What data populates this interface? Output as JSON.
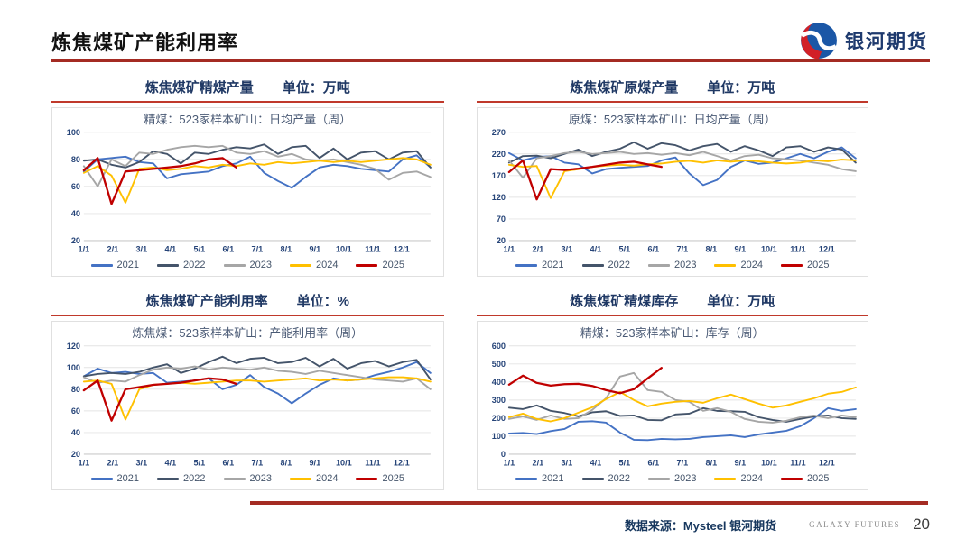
{
  "header": {
    "title": "炼焦煤矿产能利用率",
    "logo_text": "银河期货"
  },
  "footer": {
    "source_label": "数据来源：Mysteel 银河期货",
    "brand": "GALAXY FUTURES",
    "page_number": "20"
  },
  "colors": {
    "accent_red": "#A42B23",
    "panel_rule_red": "#C0392B",
    "title_navy": "#1F3864"
  },
  "chart_data": [
    {
      "type": "line",
      "panel_title": "炼焦煤矿精煤产量",
      "unit_label": "单位：万吨",
      "subtitle": "精煤：523家样本矿山：日均产量（周）",
      "ylim": [
        20,
        100
      ],
      "yticks": [
        100,
        80,
        60,
        40,
        20
      ],
      "xticklabels": [
        "1/1",
        "2/1",
        "3/1",
        "4/1",
        "5/1",
        "6/1",
        "7/1",
        "8/1",
        "9/1",
        "10/1",
        "11/1",
        "12/1"
      ],
      "points_per_year": 26,
      "grid": "horizontal",
      "legend_position": "bottom",
      "series": [
        {
          "name": "2021",
          "color": "#4472C4",
          "values": [
            71,
            80,
            81,
            82,
            78,
            77,
            66,
            69,
            70,
            71,
            75,
            77,
            82,
            70,
            64,
            59,
            67,
            74,
            76,
            75,
            73,
            72,
            71,
            80,
            83,
            74
          ]
        },
        {
          "name": "2022",
          "color": "#44546A",
          "values": [
            79,
            80,
            76,
            74,
            78,
            86,
            84,
            77,
            85,
            84,
            87,
            89,
            88,
            91,
            84,
            89,
            90,
            81,
            88,
            80,
            85,
            86,
            80,
            85,
            86,
            74
          ]
        },
        {
          "name": "2023",
          "color": "#A6A6A6",
          "values": [
            75,
            60,
            80,
            75,
            85,
            84,
            87,
            89,
            90,
            89,
            90,
            85,
            84,
            86,
            82,
            84,
            80,
            79,
            80,
            78,
            76,
            73,
            65,
            70,
            71,
            67
          ]
        },
        {
          "name": "2024",
          "color": "#FFC000",
          "values": [
            70,
            75,
            68,
            48,
            73,
            74,
            72,
            73,
            75,
            74,
            76,
            75,
            77,
            76,
            78,
            77,
            78,
            79,
            78,
            79,
            78,
            79,
            80,
            81,
            80,
            76
          ]
        },
        {
          "name": "2025",
          "color": "#C00000",
          "values": [
            72,
            81,
            47,
            71,
            72,
            73,
            74,
            75,
            77,
            80,
            81,
            74
          ]
        }
      ]
    },
    {
      "type": "line",
      "panel_title": "炼焦煤矿原煤产量",
      "unit_label": "单位：万吨",
      "subtitle": "原煤：523家样本矿山：日均产量（周）",
      "ylim": [
        20,
        270
      ],
      "yticks": [
        270,
        220,
        170,
        120,
        70,
        20
      ],
      "xticklabels": [
        "1/1",
        "2/1",
        "3/1",
        "4/1",
        "5/1",
        "6/1",
        "7/1",
        "8/1",
        "9/1",
        "10/1",
        "11/1",
        "12/1"
      ],
      "points_per_year": 26,
      "grid": "horizontal",
      "legend_position": "bottom",
      "series": [
        {
          "name": "2021",
          "color": "#4472C4",
          "values": [
            222,
            205,
            213,
            215,
            200,
            196,
            175,
            185,
            188,
            190,
            192,
            205,
            212,
            175,
            148,
            160,
            190,
            205,
            197,
            200,
            210,
            220,
            210,
            225,
            235,
            210
          ]
        },
        {
          "name": "2022",
          "color": "#44546A",
          "values": [
            200,
            215,
            216,
            210,
            220,
            230,
            215,
            225,
            232,
            247,
            232,
            245,
            240,
            228,
            238,
            243,
            225,
            238,
            228,
            215,
            235,
            238,
            225,
            235,
            230,
            200
          ]
        },
        {
          "name": "2023",
          "color": "#A6A6A6",
          "values": [
            205,
            165,
            210,
            215,
            222,
            225,
            220,
            222,
            225,
            220,
            222,
            218,
            222,
            217,
            225,
            215,
            205,
            215,
            218,
            210,
            208,
            205,
            200,
            195,
            185,
            180
          ]
        },
        {
          "name": "2024",
          "color": "#FFC000",
          "values": [
            195,
            190,
            192,
            118,
            180,
            185,
            190,
            193,
            195,
            193,
            196,
            198,
            202,
            204,
            200,
            205,
            202,
            205,
            203,
            200,
            198,
            200,
            205,
            203,
            207,
            205
          ]
        },
        {
          "name": "2025",
          "color": "#C00000",
          "values": [
            178,
            205,
            115,
            185,
            183,
            186,
            190,
            195,
            200,
            202,
            196,
            190
          ]
        }
      ]
    },
    {
      "type": "line",
      "panel_title": "炼焦煤矿产能利用率",
      "unit_label": "单位：%",
      "subtitle": "炼焦煤：523家样本矿山：产能利用率（周）",
      "ylim": [
        20,
        120
      ],
      "yticks": [
        120,
        100,
        80,
        60,
        40,
        20
      ],
      "xticklabels": [
        "1/1",
        "2/1",
        "3/1",
        "4/1",
        "5/1",
        "6/1",
        "7/1",
        "8/1",
        "9/1",
        "10/1",
        "11/1",
        "12/1"
      ],
      "points_per_year": 26,
      "grid": "horizontal",
      "legend_position": "bottom",
      "series": [
        {
          "name": "2021",
          "color": "#4472C4",
          "values": [
            92,
            99,
            95,
            96,
            94,
            95,
            86,
            87,
            88,
            90,
            80,
            84,
            93,
            82,
            76,
            67,
            76,
            84,
            90,
            88,
            89,
            93,
            96,
            100,
            105,
            95
          ]
        },
        {
          "name": "2022",
          "color": "#44546A",
          "values": [
            92,
            94,
            95,
            94,
            96,
            100,
            103,
            95,
            99,
            105,
            110,
            104,
            108,
            109,
            104,
            105,
            109,
            101,
            108,
            99,
            104,
            106,
            101,
            105,
            107,
            89
          ]
        },
        {
          "name": "2023",
          "color": "#A6A6A6",
          "values": [
            91,
            86,
            88,
            87,
            93,
            98,
            100,
            99,
            101,
            98,
            100,
            99,
            98,
            100,
            97,
            96,
            94,
            97,
            95,
            93,
            91,
            89,
            88,
            87,
            90,
            80
          ]
        },
        {
          "name": "2024",
          "color": "#FFC000",
          "values": [
            87,
            88,
            85,
            52,
            80,
            84,
            85,
            86,
            85,
            86,
            87,
            88,
            88,
            87,
            88,
            89,
            90,
            88,
            89,
            88,
            89,
            90,
            91,
            91,
            90,
            87
          ]
        },
        {
          "name": "2025",
          "color": "#C00000",
          "values": [
            79,
            88,
            51,
            80,
            82,
            84,
            85,
            86,
            88,
            90,
            89,
            85
          ]
        }
      ]
    },
    {
      "type": "line",
      "panel_title": "炼焦煤矿精煤库存",
      "unit_label": "单位：万吨",
      "subtitle": "精煤：523家样本矿山：库存（周）",
      "ylim": [
        0,
        600
      ],
      "yticks": [
        600,
        500,
        400,
        300,
        200,
        100,
        0
      ],
      "xticklabels": [
        "1/1",
        "2/1",
        "3/1",
        "4/1",
        "5/1",
        "6/1",
        "7/1",
        "8/1",
        "9/1",
        "10/1",
        "11/1",
        "12/1"
      ],
      "points_per_year": 26,
      "grid": "horizontal",
      "legend_position": "bottom",
      "series": [
        {
          "name": "2021",
          "color": "#4472C4",
          "values": [
            115,
            118,
            112,
            128,
            140,
            180,
            183,
            175,
            120,
            80,
            78,
            85,
            82,
            85,
            95,
            100,
            105,
            95,
            110,
            120,
            130,
            155,
            200,
            255,
            240,
            250
          ]
        },
        {
          "name": "2022",
          "color": "#44546A",
          "values": [
            258,
            250,
            270,
            240,
            228,
            210,
            232,
            238,
            212,
            215,
            190,
            188,
            220,
            225,
            255,
            240,
            238,
            235,
            205,
            190,
            180,
            195,
            210,
            215,
            200,
            195
          ]
        },
        {
          "name": "2023",
          "color": "#A6A6A6",
          "values": [
            195,
            210,
            190,
            215,
            195,
            200,
            245,
            310,
            430,
            450,
            355,
            345,
            300,
            290,
            240,
            255,
            235,
            195,
            180,
            175,
            185,
            205,
            215,
            200,
            215,
            205
          ]
        },
        {
          "name": "2024",
          "color": "#FFC000",
          "values": [
            205,
            225,
            195,
            182,
            200,
            230,
            260,
            305,
            345,
            300,
            265,
            280,
            290,
            295,
            285,
            310,
            330,
            305,
            280,
            258,
            270,
            290,
            310,
            335,
            345,
            370
          ]
        },
        {
          "name": "2025",
          "color": "#C00000",
          "values": [
            385,
            435,
            395,
            380,
            388,
            390,
            378,
            355,
            338,
            360,
            420,
            478
          ]
        }
      ]
    }
  ]
}
